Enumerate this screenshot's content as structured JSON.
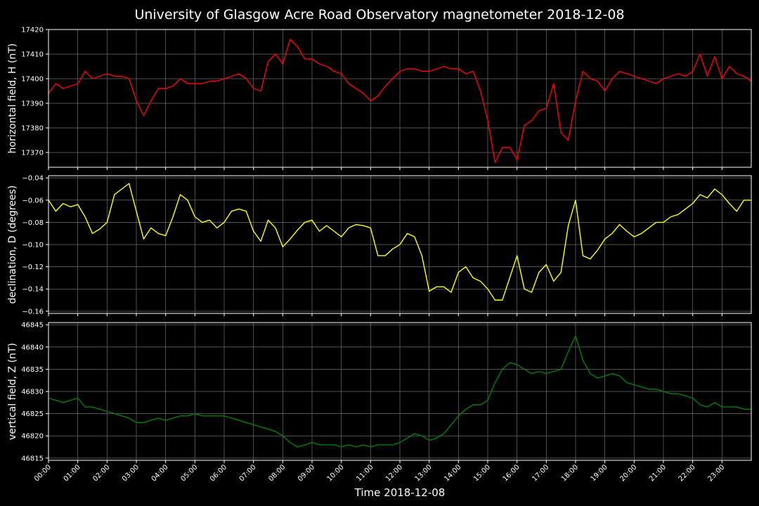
{
  "title": "University of Glasgow Acre Road Observatory magnetometer 2018-12-08",
  "colors": {
    "background": "#000000",
    "grid": "#6e6e6e",
    "axes": "#ffffff"
  },
  "chart_data": [
    {
      "type": "line",
      "ylabel": "horizontal field, H (nT)",
      "ylim": [
        17364,
        17420
      ],
      "yticks": [
        17370,
        17380,
        17390,
        17400,
        17410,
        17420
      ],
      "grid": true,
      "series": [
        {
          "color": "#ff0000",
          "x": [
            0,
            0.25,
            0.5,
            0.75,
            1.0,
            1.25,
            1.5,
            1.75,
            2.0,
            2.25,
            2.5,
            2.75,
            3.0,
            3.25,
            3.5,
            3.75,
            4.0,
            4.25,
            4.5,
            4.75,
            5.0,
            5.25,
            5.5,
            5.75,
            6.0,
            6.25,
            6.5,
            6.75,
            7.0,
            7.25,
            7.5,
            7.75,
            8.0,
            8.25,
            8.5,
            8.75,
            9.0,
            9.25,
            9.5,
            9.75,
            10.0,
            10.25,
            10.5,
            10.75,
            11.0,
            11.25,
            11.5,
            11.75,
            12.0,
            12.25,
            12.5,
            12.75,
            13.0,
            13.25,
            13.5,
            13.75,
            14.0,
            14.25,
            14.5,
            14.75,
            15.0,
            15.25,
            15.5,
            15.75,
            16.0,
            16.25,
            16.5,
            16.75,
            17.0,
            17.25,
            17.5,
            17.75,
            18.0,
            18.25,
            18.5,
            18.75,
            19.0,
            19.25,
            19.5,
            19.75,
            20.0,
            20.25,
            20.5,
            20.75,
            21.0,
            21.25,
            21.5,
            21.75,
            22.0,
            22.25,
            22.5,
            22.75,
            23.0,
            23.25,
            23.5,
            23.75,
            24.0
          ],
          "y": [
            17394,
            17398,
            17396,
            17397,
            17398,
            17403,
            17400,
            17401,
            17402,
            17401,
            17401,
            17400,
            17391,
            17385,
            17391,
            17396,
            17396,
            17397,
            17400,
            17398,
            17398,
            17398,
            17399,
            17399,
            17400,
            17401,
            17402,
            17400,
            17396,
            17395,
            17407,
            17410,
            17406,
            17416,
            17413,
            17408,
            17408,
            17406,
            17405,
            17403,
            17402,
            17398,
            17396,
            17394,
            17391,
            17393,
            17397,
            17400,
            17403,
            17404,
            17404,
            17403,
            17403,
            17404,
            17405,
            17404,
            17404,
            17402,
            17403,
            17395,
            17383,
            17366,
            17372,
            17372,
            17367,
            17381,
            17383,
            17387,
            17388,
            17398,
            17378,
            17375,
            17391,
            17403,
            17400,
            17399,
            17395,
            17400,
            17403,
            17402,
            17401,
            17400,
            17399,
            17398,
            17400,
            17401,
            17402,
            17401,
            17403,
            17410,
            17401,
            17409,
            17400,
            17405,
            17402,
            17401,
            17399
          ]
        }
      ]
    },
    {
      "type": "line",
      "ylabel": "declination, D (degrees)",
      "ylim": [
        -0.162,
        -0.038
      ],
      "yticks": [
        -0.16,
        -0.14,
        -0.12,
        -0.1,
        -0.08,
        -0.06,
        -0.04
      ],
      "ytick_labels": [
        "−0.16",
        "−0.14",
        "−0.12",
        "−0.10",
        "−0.08",
        "−0.06",
        "−0.04"
      ],
      "grid": true,
      "series": [
        {
          "color": "#ffff00",
          "x": [
            0,
            0.25,
            0.5,
            0.75,
            1.0,
            1.25,
            1.5,
            1.75,
            2.0,
            2.25,
            2.5,
            2.75,
            3.0,
            3.25,
            3.5,
            3.75,
            4.0,
            4.25,
            4.5,
            4.75,
            5.0,
            5.25,
            5.5,
            5.75,
            6.0,
            6.25,
            6.5,
            6.75,
            7.0,
            7.25,
            7.5,
            7.75,
            8.0,
            8.25,
            8.5,
            8.75,
            9.0,
            9.25,
            9.5,
            9.75,
            10.0,
            10.25,
            10.5,
            10.75,
            11.0,
            11.25,
            11.5,
            11.75,
            12.0,
            12.25,
            12.5,
            12.75,
            13.0,
            13.25,
            13.5,
            13.75,
            14.0,
            14.25,
            14.5,
            14.75,
            15.0,
            15.25,
            15.5,
            15.75,
            16.0,
            16.25,
            16.5,
            16.75,
            17.0,
            17.25,
            17.5,
            17.75,
            18.0,
            18.25,
            18.5,
            18.75,
            19.0,
            19.25,
            19.5,
            19.75,
            20.0,
            20.25,
            20.5,
            20.75,
            21.0,
            21.25,
            21.5,
            21.75,
            22.0,
            22.25,
            22.5,
            22.75,
            23.0,
            23.25,
            23.5,
            23.75,
            24.0
          ],
          "y": [
            -0.06,
            -0.07,
            -0.063,
            -0.066,
            -0.064,
            -0.075,
            -0.09,
            -0.086,
            -0.08,
            -0.055,
            -0.05,
            -0.045,
            -0.07,
            -0.095,
            -0.085,
            -0.09,
            -0.092,
            -0.075,
            -0.055,
            -0.06,
            -0.075,
            -0.08,
            -0.078,
            -0.085,
            -0.08,
            -0.07,
            -0.068,
            -0.07,
            -0.088,
            -0.097,
            -0.078,
            -0.085,
            -0.102,
            -0.095,
            -0.087,
            -0.08,
            -0.078,
            -0.088,
            -0.083,
            -0.088,
            -0.093,
            -0.085,
            -0.082,
            -0.083,
            -0.085,
            -0.11,
            -0.11,
            -0.104,
            -0.1,
            -0.09,
            -0.093,
            -0.11,
            -0.142,
            -0.138,
            -0.138,
            -0.143,
            -0.125,
            -0.12,
            -0.13,
            -0.133,
            -0.14,
            -0.15,
            -0.15,
            -0.13,
            -0.11,
            -0.14,
            -0.143,
            -0.125,
            -0.118,
            -0.133,
            -0.125,
            -0.083,
            -0.06,
            -0.11,
            -0.113,
            -0.105,
            -0.095,
            -0.09,
            -0.082,
            -0.088,
            -0.093,
            -0.09,
            -0.085,
            -0.08,
            -0.08,
            -0.075,
            -0.073,
            -0.068,
            -0.063,
            -0.055,
            -0.058,
            -0.05,
            -0.055,
            -0.063,
            -0.07,
            -0.06,
            -0.06
          ]
        }
      ]
    },
    {
      "type": "line",
      "ylabel": "vertical field, Z (nT)",
      "xlabel": "Time 2018-12-08",
      "ylim": [
        46814.5,
        46845.5
      ],
      "yticks": [
        46815,
        46820,
        46825,
        46830,
        46835,
        46840,
        46845
      ],
      "xlim": [
        0,
        24
      ],
      "xtick_labels": [
        "00:00",
        "01:00",
        "02:00",
        "03:00",
        "04:00",
        "05:00",
        "06:00",
        "07:00",
        "08:00",
        "09:00",
        "10:00",
        "11:00",
        "12:00",
        "13:00",
        "14:00",
        "15:00",
        "16:00",
        "17:00",
        "18:00",
        "19:00",
        "20:00",
        "21:00",
        "22:00",
        "23:00"
      ],
      "grid": true,
      "series": [
        {
          "color": "#008000",
          "x": [
            0,
            0.25,
            0.5,
            0.75,
            1.0,
            1.25,
            1.5,
            1.75,
            2.0,
            2.25,
            2.5,
            2.75,
            3.0,
            3.25,
            3.5,
            3.75,
            4.0,
            4.25,
            4.5,
            4.75,
            5.0,
            5.25,
            5.5,
            5.75,
            6.0,
            6.25,
            6.5,
            6.75,
            7.0,
            7.25,
            7.5,
            7.75,
            8.0,
            8.25,
            8.5,
            8.75,
            9.0,
            9.25,
            9.5,
            9.75,
            10.0,
            10.25,
            10.5,
            10.75,
            11.0,
            11.25,
            11.5,
            11.75,
            12.0,
            12.25,
            12.5,
            12.75,
            13.0,
            13.25,
            13.5,
            13.75,
            14.0,
            14.25,
            14.5,
            14.75,
            15.0,
            15.25,
            15.5,
            15.75,
            16.0,
            16.25,
            16.5,
            16.75,
            17.0,
            17.25,
            17.5,
            17.75,
            18.0,
            18.25,
            18.5,
            18.75,
            19.0,
            19.25,
            19.5,
            19.75,
            20.0,
            20.25,
            20.5,
            20.75,
            21.0,
            21.25,
            21.5,
            21.75,
            22.0,
            22.25,
            22.5,
            22.75,
            23.0,
            23.25,
            23.5,
            23.75,
            24.0
          ],
          "y": [
            46828.5,
            46828.0,
            46827.5,
            46828.0,
            46828.5,
            46826.5,
            46826.5,
            46826.0,
            46825.5,
            46825.0,
            46824.5,
            46824.0,
            46823.0,
            46823.0,
            46823.5,
            46824.0,
            46823.5,
            46824.0,
            46824.5,
            46824.5,
            46825.0,
            46824.5,
            46824.5,
            46824.5,
            46824.5,
            46824.0,
            46823.5,
            46823.0,
            46822.5,
            46822.0,
            46821.5,
            46821.0,
            46820.0,
            46818.5,
            46817.5,
            46818.0,
            46818.5,
            46818.0,
            46818.0,
            46818.0,
            46817.5,
            46818.0,
            46817.5,
            46818.0,
            46817.5,
            46818.0,
            46818.0,
            46818.0,
            46818.5,
            46819.5,
            46820.5,
            46820.0,
            46819.0,
            46819.5,
            46820.5,
            46822.5,
            46824.5,
            46826.0,
            46827.0,
            46827.0,
            46828.0,
            46832.0,
            46835.0,
            46836.5,
            46836.0,
            46835.0,
            46834.0,
            46834.5,
            46834.0,
            46834.5,
            46835.0,
            46839.0,
            46842.5,
            46837.0,
            46834.0,
            46833.0,
            46833.5,
            46834.0,
            46833.5,
            46832.0,
            46831.5,
            46831.0,
            46830.5,
            46830.5,
            46830.0,
            46829.5,
            46829.5,
            46829.0,
            46828.5,
            46827.0,
            46826.5,
            46827.5,
            46826.5,
            46826.5,
            46826.5,
            46826.0,
            46826.0
          ]
        }
      ]
    }
  ]
}
